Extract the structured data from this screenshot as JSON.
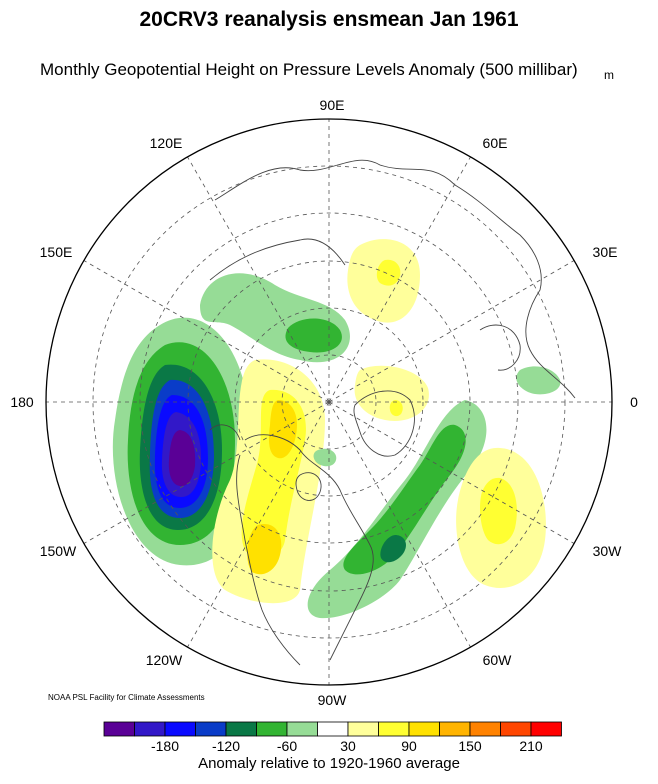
{
  "title": "20CRV3 reanalysis ensmean Jan 1961",
  "subtitle": "Monthly Geopotential Height on Pressure Levels Anomaly (500 millibar)",
  "unit": "m",
  "credit": "NOAA PSL Facility for Climate Assessments",
  "longitude_labels": {
    "lon_90e": "90E",
    "lon_120e": "120E",
    "lon_60e": "60E",
    "lon_150e": "150E",
    "lon_30e": "30E",
    "lon_180": "180",
    "lon_0": "0",
    "lon_150w": "150W",
    "lon_30w": "30W",
    "lon_120w": "120W",
    "lon_60w": "60W",
    "lon_90w": "90W"
  },
  "colorbar": {
    "title": "Anomaly relative to 1920-1960 average",
    "tick_labels": [
      "-180",
      "-120",
      "-60",
      "30",
      "90",
      "150",
      "210"
    ],
    "colors": [
      "#5a0096",
      "#3218c8",
      "#0a0aff",
      "#0a3cc8",
      "#0a7846",
      "#32b432",
      "#96dc96",
      "#ffffff",
      "#ffff9b",
      "#ffff32",
      "#ffe100",
      "#ffb400",
      "#ff8200",
      "#ff4600",
      "#ff0000"
    ]
  },
  "colors": {
    "coast": "#444444",
    "grid": "#555555"
  }
}
